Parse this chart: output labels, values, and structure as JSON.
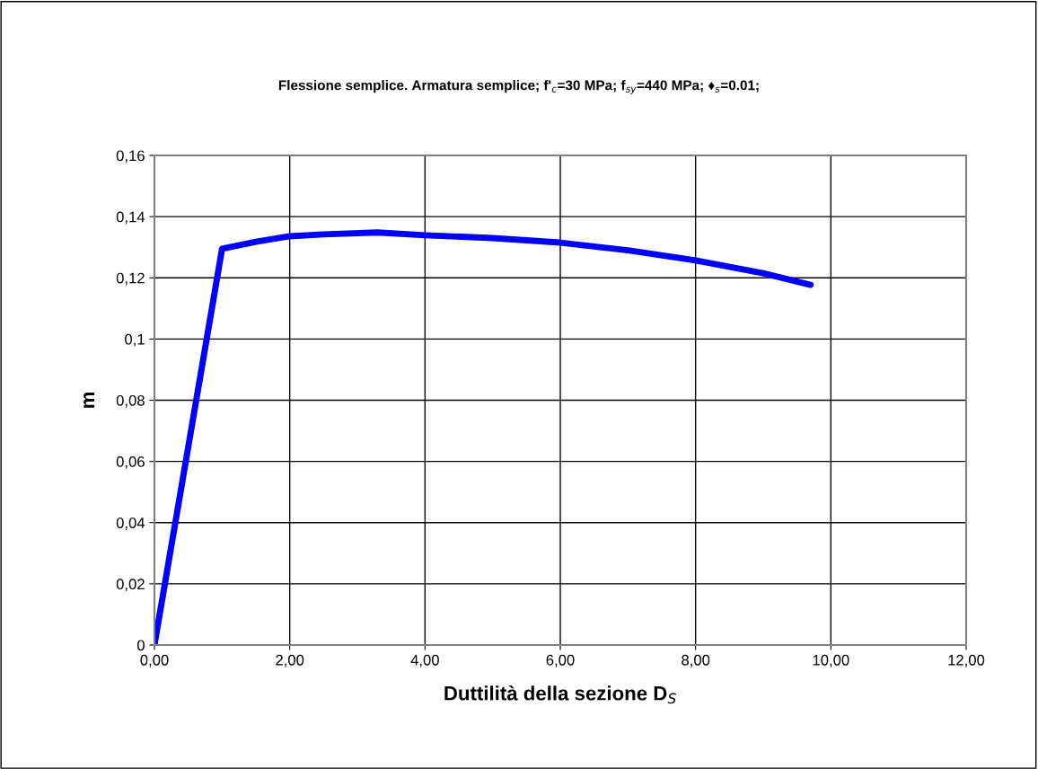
{
  "chart_data": {
    "type": "line",
    "title": "Flessione semplice. Armatura semplice; f'$_{c}$=30 MPa; f$_{sy}$=440 MPa; ♦$_{s}$=0.01;",
    "xlabel": "Duttilità della sezione D$_{S}$",
    "ylabel": "m",
    "x": [
      0,
      1.0,
      1.5,
      2.0,
      2.5,
      3.3,
      4.0,
      5.0,
      6.0,
      7.0,
      8.0,
      9.0,
      9.7
    ],
    "series": [
      {
        "color": "#0000ff",
        "values": [
          0,
          0.1295,
          0.1318,
          0.1336,
          0.1342,
          0.1348,
          0.1339,
          0.133,
          0.1315,
          0.129,
          0.1257,
          0.1215,
          0.1177
        ]
      }
    ],
    "xlim": [
      0,
      12
    ],
    "xticks": [
      {
        "value": 0,
        "label": "0,00"
      },
      {
        "value": 2,
        "label": "2,00"
      },
      {
        "value": 4,
        "label": "4,00"
      },
      {
        "value": 6,
        "label": "6,00"
      },
      {
        "value": 8,
        "label": "8,00"
      },
      {
        "value": 10,
        "label": "10,00"
      },
      {
        "value": 12,
        "label": "12,00"
      }
    ],
    "ylim": [
      0,
      0.16
    ],
    "yticks": [
      0,
      {
        "value": 0.02,
        "label": "0,02"
      },
      {
        "value": 0.04,
        "label": "0,04"
      },
      {
        "value": 0.06,
        "label": "0,06"
      },
      {
        "value": 0.08,
        "label": "0,08"
      },
      {
        "value": 0.1,
        "label": "0,1"
      },
      {
        "value": 0.12,
        "label": "0,12"
      },
      {
        "value": 0.14,
        "label": "0,14"
      },
      {
        "value": 0.16,
        "label": "0,16"
      }
    ],
    "grid": true,
    "legend": false,
    "marker": "none",
    "line_style": "solid"
  }
}
